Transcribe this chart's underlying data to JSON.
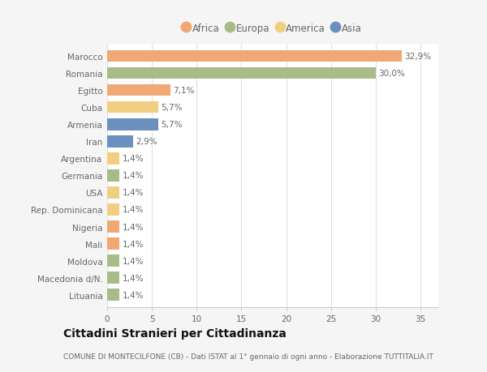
{
  "countries": [
    "Marocco",
    "Romania",
    "Egitto",
    "Cuba",
    "Armenia",
    "Iran",
    "Argentina",
    "Germania",
    "USA",
    "Rep. Dominicana",
    "Nigeria",
    "Mali",
    "Moldova",
    "Macedonia d/N.",
    "Lituania"
  ],
  "values": [
    32.9,
    30.0,
    7.1,
    5.7,
    5.7,
    2.9,
    1.4,
    1.4,
    1.4,
    1.4,
    1.4,
    1.4,
    1.4,
    1.4,
    1.4
  ],
  "labels": [
    "32,9%",
    "30,0%",
    "7,1%",
    "5,7%",
    "5,7%",
    "2,9%",
    "1,4%",
    "1,4%",
    "1,4%",
    "1,4%",
    "1,4%",
    "1,4%",
    "1,4%",
    "1,4%",
    "1,4%"
  ],
  "continents": [
    "Africa",
    "Europa",
    "Africa",
    "America",
    "Asia",
    "Asia",
    "America",
    "Europa",
    "America",
    "America",
    "Africa",
    "Africa",
    "Europa",
    "Europa",
    "Europa"
  ],
  "colors": {
    "Africa": "#F0A875",
    "Europa": "#A8BC8A",
    "America": "#F0D080",
    "Asia": "#6B8FBF"
  },
  "legend_order": [
    "Africa",
    "Europa",
    "America",
    "Asia"
  ],
  "title": "Cittadini Stranieri per Cittadinanza",
  "subtitle": "COMUNE DI MONTECILFONE (CB) - Dati ISTAT al 1° gennaio di ogni anno - Elaborazione TUTTITALIA.IT",
  "xlim": [
    0,
    37
  ],
  "xticks": [
    0,
    5,
    10,
    15,
    20,
    25,
    30,
    35
  ],
  "bg_color": "#f5f5f5",
  "chart_bg": "#ffffff",
  "bar_height": 0.7,
  "label_fontsize": 7.5,
  "tick_fontsize": 7.5,
  "title_fontsize": 10,
  "subtitle_fontsize": 6.5
}
